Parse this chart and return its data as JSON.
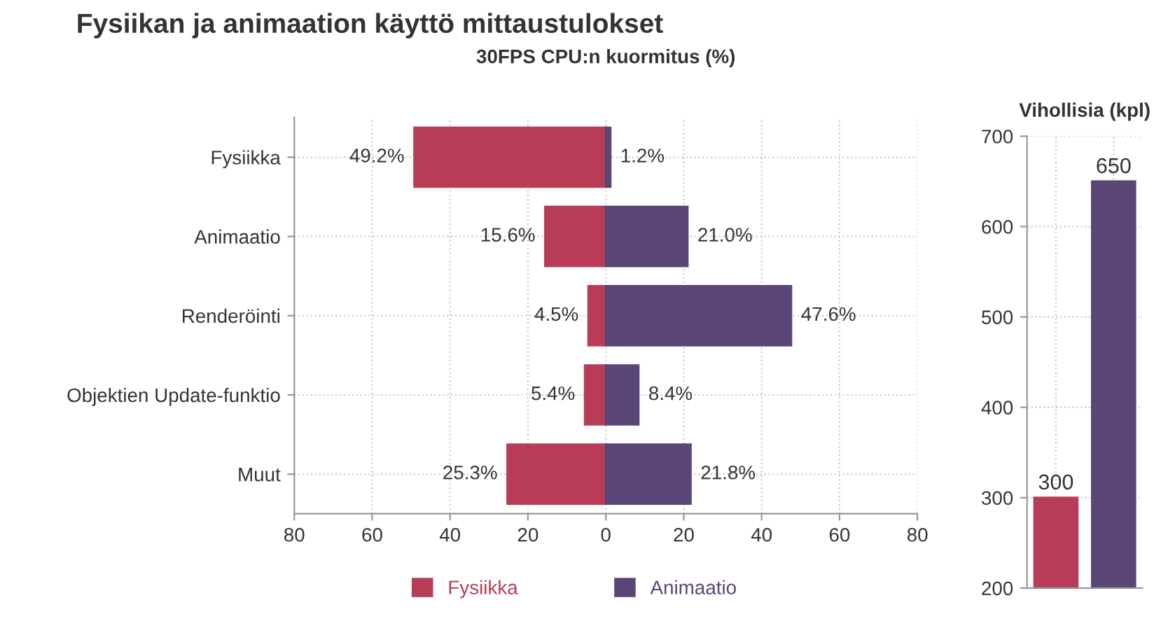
{
  "chart_data": [
    {
      "type": "bar",
      "title": "Fysiikan ja animaation käyttö mittaustulokset",
      "subtitle": "30FPS CPU:n kuormitus (%)",
      "orientation": "horizontal",
      "categories": [
        "Fysiikka",
        "Animaatio",
        "Renderöinti",
        "Objektien Update-funktio",
        "Muut"
      ],
      "series": [
        {
          "name": "Fysiikka",
          "color": "#b83c56",
          "values": [
            49.2,
            15.6,
            4.5,
            5.4,
            25.3
          ],
          "base": [
            -49.2,
            -15.6,
            -4.5,
            -5.4,
            -25.3
          ],
          "value_labels": [
            "49.2%",
            "15.6%",
            "4.5%",
            "5.4%",
            "25.3%"
          ]
        },
        {
          "name": "Animaatio",
          "color": "#5a4577",
          "values": [
            1.2,
            21.0,
            47.6,
            8.4,
            21.8
          ],
          "value_labels": [
            "1.2%",
            "21.0%",
            "47.6%",
            "8.4%",
            "21.8%"
          ]
        }
      ],
      "xlim": [
        -80,
        80
      ],
      "xticks": [
        {
          "value": -80,
          "label": "80"
        },
        {
          "value": -60,
          "label": "60"
        },
        {
          "value": -40,
          "label": "40"
        },
        {
          "value": -20,
          "label": "20"
        },
        0,
        20,
        40,
        60,
        80
      ],
      "grid": true,
      "legend": "bottom"
    },
    {
      "type": "bar",
      "title": "Vihollisia (kpl)",
      "categories": [
        null,
        null
      ],
      "values": [
        300,
        650
      ],
      "colors": [
        "#b83c56",
        "#5a4577"
      ],
      "ylim": [
        200,
        700
      ],
      "yticks": [
        200,
        300,
        400,
        500,
        600,
        700
      ],
      "data_labels": true,
      "grid": true,
      "tick_labels": "y"
    }
  ]
}
